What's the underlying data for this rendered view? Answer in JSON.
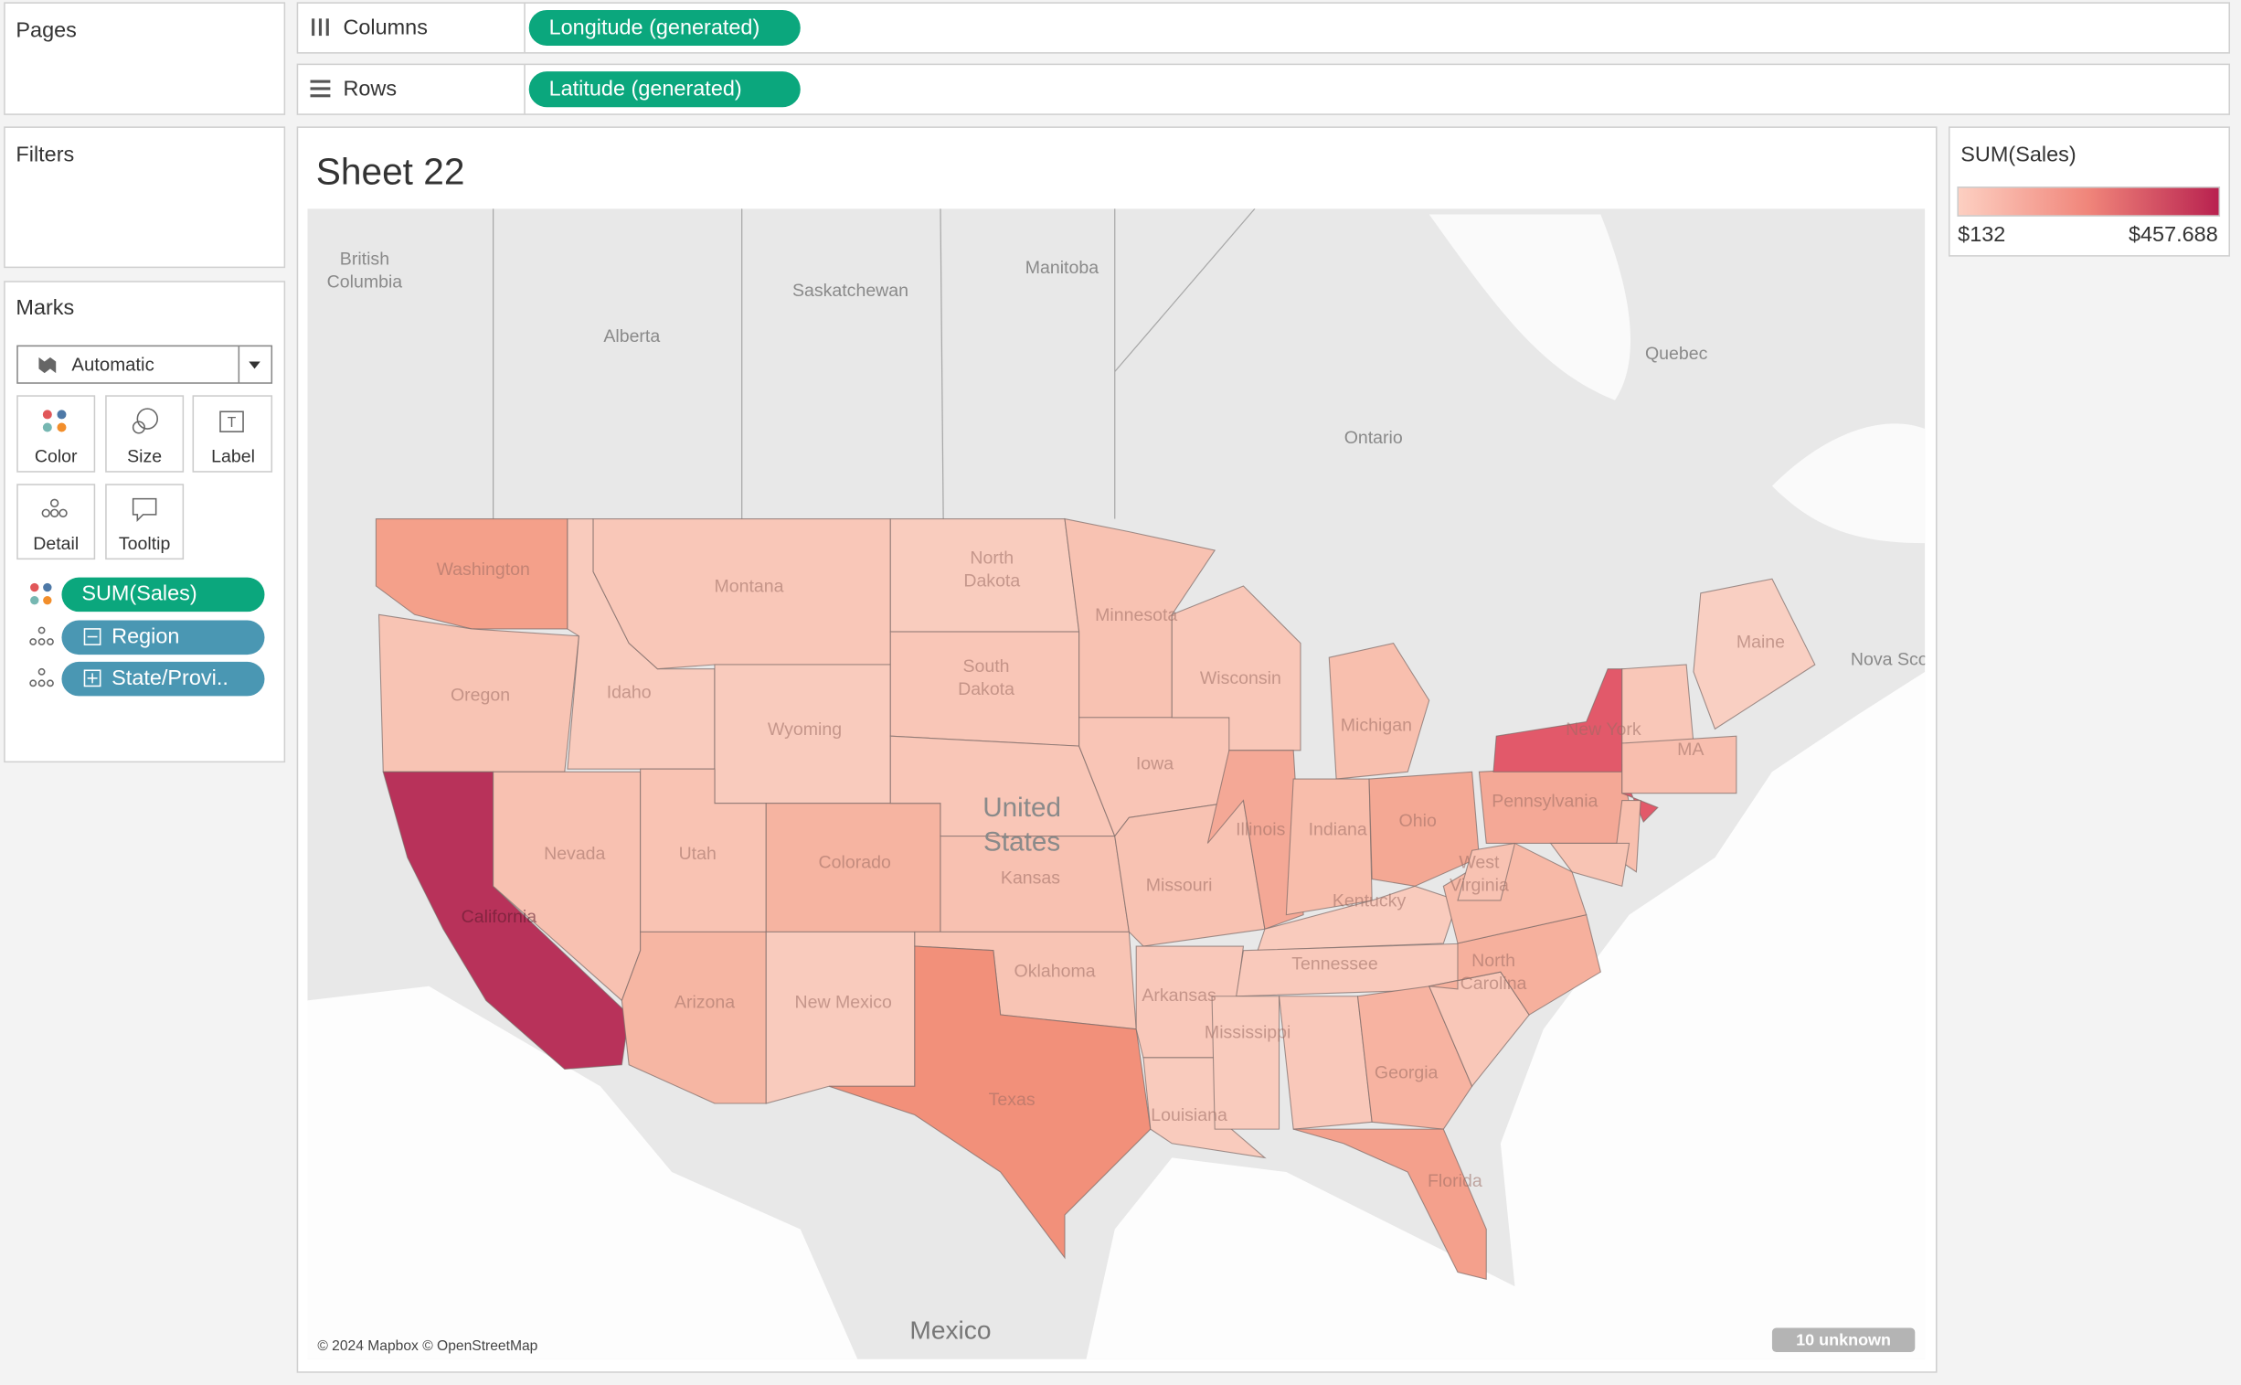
{
  "pages": {
    "title": "Pages"
  },
  "shelves": {
    "columns": {
      "label": "Columns",
      "pill": "Longitude (generated)"
    },
    "rows": {
      "label": "Rows",
      "pill": "Latitude (generated)"
    }
  },
  "filters": {
    "title": "Filters"
  },
  "marks": {
    "title": "Marks",
    "mark_type": "Automatic",
    "buttons": [
      "Color",
      "Size",
      "Label",
      "Detail",
      "Tooltip"
    ],
    "pills": [
      "SUM(Sales)",
      "Region",
      "State/Provi.."
    ]
  },
  "sheet": {
    "title": "Sheet 22",
    "map_labels": [
      [
        "British",
        "Columbia"
      ],
      "Saskatchewan",
      "Manitoba",
      "Alberta",
      "Quebec",
      "Ontario",
      "Nova Scotia",
      "Washington",
      "Montana",
      [
        "North",
        "Dakota"
      ],
      "Minnesota",
      [
        "South",
        "Dakota"
      ],
      "Wisconsin",
      "Maine",
      "Oregon",
      "Idaho",
      "Wyoming",
      "Michigan",
      "New York",
      "MA",
      [
        "United",
        "States"
      ],
      "Iowa",
      "Pennsylvania",
      "Illinois",
      "Indiana",
      "Ohio",
      "Nevada",
      "Utah",
      "Colorado",
      "Kansas",
      "Missouri",
      [
        "West",
        "Virginia"
      ],
      "Kentucky",
      "Tennessee",
      [
        "North",
        "Carolina"
      ],
      "Oklahoma",
      "Arkansas",
      "California",
      "Arizona",
      "New Mexico",
      "Mississippi",
      "Georgia",
      "Texas",
      "Louisiana",
      "Florida",
      "Mexico"
    ],
    "attribution": "© 2024 Mapbox © OpenStreetMap",
    "unknown_indicator": "10 unknown"
  },
  "legend": {
    "title": "SUM(Sales)",
    "min_label": "$132",
    "max_label": "$457.688"
  }
}
